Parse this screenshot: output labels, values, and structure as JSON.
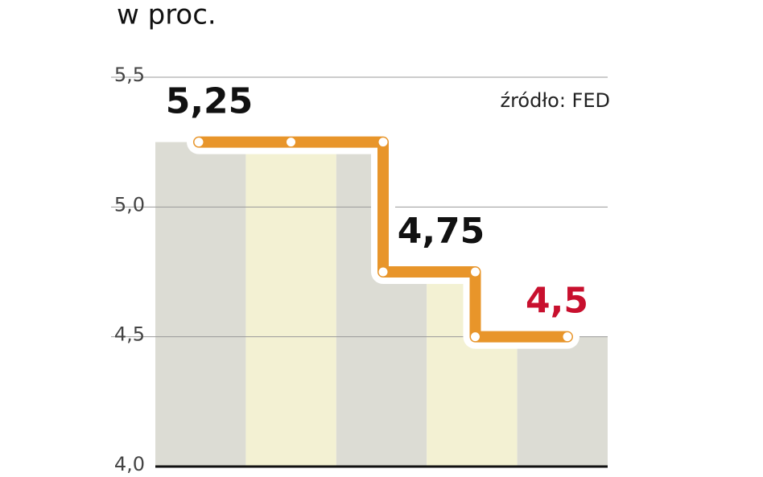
{
  "chart_data": {
    "type": "line",
    "step": true,
    "title": "w proc.",
    "annotation": "źródło: FED",
    "values": [
      5.25,
      5.25,
      5.25,
      4.75,
      4.75,
      4.5,
      4.5
    ],
    "value_labels": [
      "5,25",
      null,
      null,
      "4,75",
      null,
      null,
      "4,5"
    ],
    "color": "#e8952a",
    "highlight_color": "#c8102e",
    "ylim": [
      4.0,
      5.5
    ],
    "yticks": [
      {
        "value": 4.0,
        "label": "4,0"
      },
      {
        "value": 4.5,
        "label": "4,5"
      },
      {
        "value": 5.0,
        "label": "5,0"
      },
      {
        "value": 5.5,
        "label": "5,5"
      }
    ],
    "grid": true
  }
}
